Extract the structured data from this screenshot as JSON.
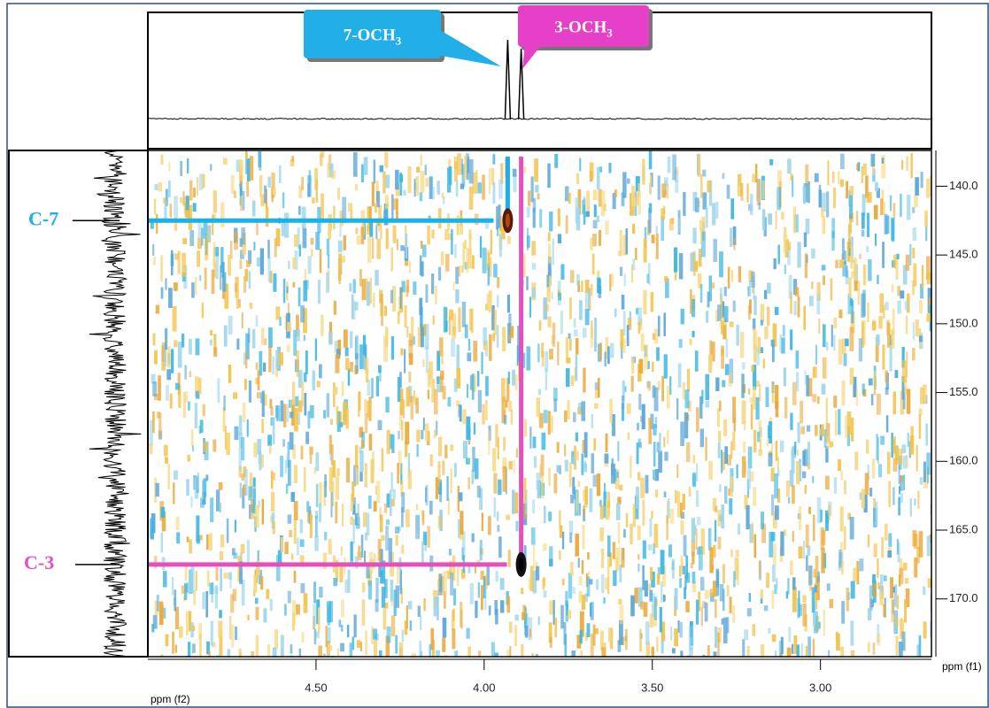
{
  "chart_data": {
    "type": "scatter",
    "x_label": "ppm (f2)",
    "y_label": "ppm (f1)",
    "xlim": [
      5.0,
      2.67
    ],
    "ylim": [
      137.4,
      174.2
    ],
    "xticks": [
      {
        "value": 4.5,
        "label": "4.50"
      },
      {
        "value": 4.0,
        "label": "4.00"
      },
      {
        "value": 3.5,
        "label": "3.50"
      },
      {
        "value": 3.0,
        "label": "3.00"
      }
    ],
    "yticks": [
      {
        "value": 140,
        "label": "140.0"
      },
      {
        "value": 145,
        "label": "145.0"
      },
      {
        "value": 150,
        "label": "150.0"
      },
      {
        "value": 155,
        "label": "155.0"
      },
      {
        "value": 160,
        "label": "160.0"
      },
      {
        "value": 165,
        "label": "165.0"
      },
      {
        "value": 170,
        "label": "170.0"
      }
    ],
    "peaks": [
      {
        "label": "C-7",
        "x": 3.93,
        "y": 142.5,
        "color": "#1ab0e8",
        "callout": {
          "text": "7-OCH",
          "subscript": "3",
          "color": "#22aee6"
        }
      },
      {
        "label": "C-3",
        "x": 3.89,
        "y": 167.5,
        "color": "#e64fc0",
        "callout": {
          "text": "3-OCH",
          "subscript": "3",
          "color": "#e63fc8"
        }
      }
    ]
  }
}
